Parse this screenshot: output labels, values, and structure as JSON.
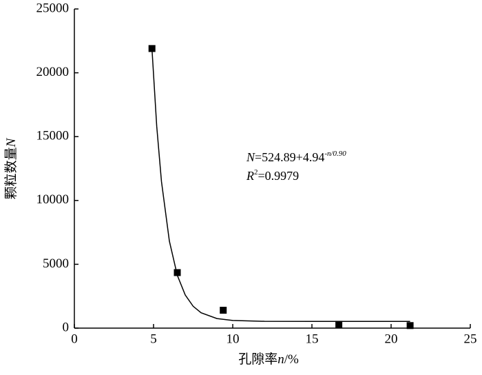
{
  "chart_data": {
    "type": "scatter",
    "x_label": [
      "孔隙率",
      "n",
      "/%"
    ],
    "y_label": [
      "颗粒数量",
      "N"
    ],
    "equation": [
      "N",
      "=524.89+4.94",
      "-n/0.90"
    ],
    "r_squared": [
      "R",
      "2",
      "=0.9979"
    ],
    "x": [
      4.9,
      6.5,
      9.4,
      16.7,
      21.2
    ],
    "values": [
      21900,
      4350,
      1400,
      300,
      200
    ],
    "color": "#000000",
    "curve": {
      "x": [
        4.9,
        5.2,
        5.5,
        6.0,
        6.5,
        7.0,
        7.5,
        8.0,
        9.0,
        10,
        12,
        15,
        21.2
      ],
      "values": [
        21875,
        15815,
        11482,
        6814,
        4135,
        2596,
        1713,
        1206,
        749,
        599,
        533,
        525,
        525
      ]
    },
    "xlim": [
      0,
      25
    ],
    "xticks": [
      0,
      5,
      10,
      15,
      20,
      25
    ],
    "ylim": [
      0,
      25000
    ],
    "yticks": [
      0,
      5000,
      10000,
      15000,
      20000,
      25000
    ]
  }
}
